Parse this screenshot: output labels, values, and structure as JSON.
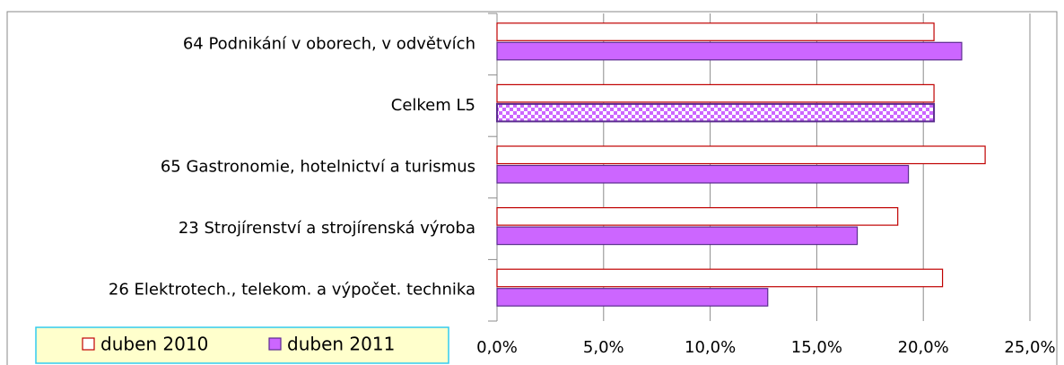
{
  "chart_data": {
    "type": "hbar",
    "categories": [
      "64 Podnikání v oborech, v odvětvích",
      "Celkem L5",
      "65 Gastronomie, hotelnictví a turismus",
      "23 Strojírenství a strojírenská výroba",
      "26 Elektrotech., telekom. a výpočet. technika"
    ],
    "series": [
      {
        "name": "duben 2010",
        "color": "#ffffff",
        "stroke": "#c00000",
        "values": [
          20.5,
          20.5,
          22.9,
          18.8,
          20.9
        ]
      },
      {
        "name": "duben 2011",
        "color": "#cc66ff",
        "stroke": "#5b2c8f",
        "values": [
          21.8,
          20.5,
          19.3,
          16.9,
          12.7
        ],
        "pattern_index": 1
      }
    ],
    "xlim": [
      0,
      25
    ],
    "xticks": [
      {
        "value": 0,
        "label": "0,0%"
      },
      {
        "value": 5,
        "label": "5,0%"
      },
      {
        "value": 10,
        "label": "10,0%"
      },
      {
        "value": 15,
        "label": "15,0%"
      },
      {
        "value": 20,
        "label": "20,0%"
      },
      {
        "value": 25,
        "label": "25,0%"
      }
    ],
    "grid": true,
    "legend": "bottom-left"
  }
}
